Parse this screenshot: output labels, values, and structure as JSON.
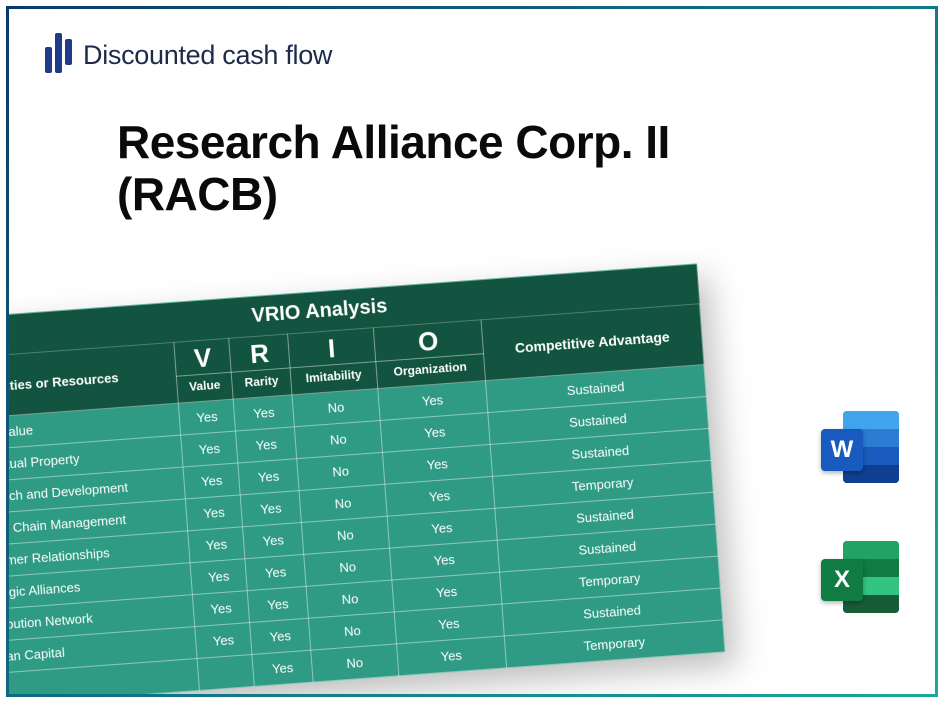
{
  "brand": {
    "name": "Discounted cash flow",
    "color": "#1f3b8a"
  },
  "headline": {
    "line1": "Research Alliance Corp. II",
    "line2": "(RACB)"
  },
  "vrio": {
    "title": "VRIO Analysis",
    "header": {
      "capabilities": "Capabilities or Resources",
      "letters": [
        "V",
        "R",
        "I",
        "O"
      ],
      "sublabels": [
        "Value",
        "Rarity",
        "Imitability",
        "Organization"
      ],
      "advantage": "Competitive Advantage"
    },
    "colors": {
      "header_bg": "#12543f",
      "body_bg": "#2f9b84",
      "border": "rgba(255,255,255,0.45)",
      "text": "#ffffff"
    },
    "rows": [
      {
        "label": "Brand Value",
        "v": "Yes",
        "r": "Yes",
        "i": "No",
        "o": "Yes",
        "adv": "Sustained"
      },
      {
        "label": "Intellectual Property",
        "v": "Yes",
        "r": "Yes",
        "i": "No",
        "o": "Yes",
        "adv": "Sustained"
      },
      {
        "label": "Research and Development",
        "v": "Yes",
        "r": "Yes",
        "i": "No",
        "o": "Yes",
        "adv": "Sustained"
      },
      {
        "label": "Supply Chain Management",
        "v": "Yes",
        "r": "Yes",
        "i": "No",
        "o": "Yes",
        "adv": "Temporary"
      },
      {
        "label": "Customer Relationships",
        "v": "Yes",
        "r": "Yes",
        "i": "No",
        "o": "Yes",
        "adv": "Sustained"
      },
      {
        "label": "Strategic Alliances",
        "v": "Yes",
        "r": "Yes",
        "i": "No",
        "o": "Yes",
        "adv": "Sustained"
      },
      {
        "label": "Distribution Network",
        "v": "Yes",
        "r": "Yes",
        "i": "No",
        "o": "Yes",
        "adv": "Temporary"
      },
      {
        "label": "Human Capital",
        "v": "Yes",
        "r": "Yes",
        "i": "No",
        "o": "Yes",
        "adv": "Sustained"
      },
      {
        "label": "",
        "v": "",
        "r": "Yes",
        "i": "No",
        "o": "Yes",
        "adv": "Temporary"
      }
    ]
  },
  "icons": {
    "word": {
      "letter": "W",
      "badge_bg": "#185abd",
      "stripes": [
        "#41a5ee",
        "#2b7cd3",
        "#185abd",
        "#103f91"
      ]
    },
    "excel": {
      "letter": "X",
      "badge_bg": "#107c41",
      "stripes": [
        "#21a366",
        "#107c41",
        "#33c481",
        "#185c37"
      ]
    }
  }
}
